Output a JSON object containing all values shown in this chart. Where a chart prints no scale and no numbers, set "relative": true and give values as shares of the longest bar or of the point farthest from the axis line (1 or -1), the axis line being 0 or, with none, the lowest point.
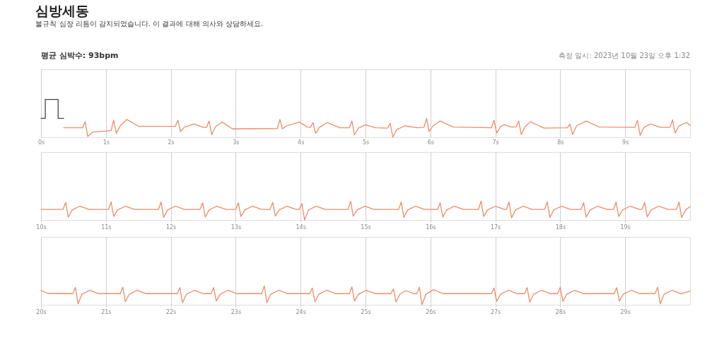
{
  "chart_data": [
    {
      "type": "line",
      "title": "심방세동",
      "subtitle": "불규칙 심장 리듬이 감지되었습니다. 이 결과에 대해 의사와 상담하세요.",
      "annotations": [
        "평균 심박수: 93bpm",
        "측정 일시: 2023년 10월 23일 오후 1:32"
      ],
      "relative": true,
      "grid": "x",
      "xlim": [
        0,
        10
      ],
      "xticks": [
        {
          "value": 0,
          "label": "0s"
        },
        {
          "value": 1,
          "label": "1s"
        },
        {
          "value": 2,
          "label": "2s"
        },
        {
          "value": 3,
          "label": "3s"
        },
        {
          "value": 4,
          "label": "4s"
        },
        {
          "value": 5,
          "label": "5s"
        },
        {
          "value": 6,
          "label": "6s"
        },
        {
          "value": 7,
          "label": "7s"
        },
        {
          "value": 8,
          "label": "8s"
        },
        {
          "value": 9,
          "label": "9s"
        }
      ],
      "series": [
        {
          "color": "#ee8d68",
          "x": [
            0.35,
            0.64,
            0.68,
            0.72,
            0.8,
            1.0,
            1.08,
            1.12,
            1.16,
            1.22,
            1.32,
            1.5,
            2.07,
            2.11,
            2.15,
            2.21,
            2.36,
            2.5,
            2.55,
            2.59,
            2.63,
            2.69,
            2.79,
            2.95,
            3.64,
            3.68,
            3.72,
            3.78,
            3.98,
            4.1,
            4.15,
            4.19,
            4.23,
            4.29,
            4.41,
            4.6,
            4.75,
            4.79,
            4.83,
            4.89,
            5.0,
            5.15,
            5.34,
            5.38,
            5.42,
            5.48,
            5.6,
            5.8,
            5.9,
            5.94,
            5.98,
            6.04,
            6.15,
            6.35,
            6.94,
            6.98,
            7.02,
            7.08,
            7.14,
            7.25,
            7.32,
            7.36,
            7.4,
            7.46,
            7.54,
            7.75,
            8.11,
            8.15,
            8.19,
            8.25,
            8.4,
            8.6,
            9.15,
            9.19,
            9.23,
            9.29,
            9.39,
            9.55,
            9.69,
            9.73,
            9.77,
            9.83,
            9.95,
            10.0
          ],
          "values": [
            0.25,
            0.25,
            0.41,
            0.02,
            0.14,
            0.16,
            0.18,
            0.45,
            0.1,
            0.3,
            0.47,
            0.29,
            0.29,
            0.45,
            0.15,
            0.27,
            0.35,
            0.26,
            0.26,
            0.43,
            0.07,
            0.28,
            0.4,
            0.22,
            0.23,
            0.47,
            0.22,
            0.3,
            0.4,
            0.27,
            0.26,
            0.39,
            0.1,
            0.26,
            0.39,
            0.25,
            0.25,
            0.43,
            0.06,
            0.24,
            0.33,
            0.25,
            0.24,
            0.37,
            0.0,
            0.2,
            0.3,
            0.25,
            0.26,
            0.5,
            0.15,
            0.3,
            0.43,
            0.27,
            0.25,
            0.45,
            0.11,
            0.28,
            0.33,
            0.27,
            0.27,
            0.43,
            0.07,
            0.28,
            0.41,
            0.24,
            0.25,
            0.35,
            0.07,
            0.3,
            0.43,
            0.27,
            0.26,
            0.45,
            0.05,
            0.26,
            0.35,
            0.26,
            0.26,
            0.46,
            0.11,
            0.3,
            0.39,
            0.31
          ]
        },
        {
          "color": "#444444",
          "x": [
            0,
            0.066,
            0.066,
            0.264,
            0.264,
            0.35
          ],
          "values": [
            0.5,
            0.5,
            1,
            1,
            0.5,
            0.5
          ]
        }
      ]
    },
    {
      "type": "line",
      "relative": true,
      "grid": "x",
      "xlim": [
        10,
        20
      ],
      "xticks": [
        {
          "value": 10,
          "label": "10s"
        },
        {
          "value": 11,
          "label": "11s"
        },
        {
          "value": 12,
          "label": "12s"
        },
        {
          "value": 13,
          "label": "13s"
        },
        {
          "value": 14,
          "label": "14s"
        },
        {
          "value": 15,
          "label": "15s"
        },
        {
          "value": 16,
          "label": "16s"
        },
        {
          "value": 17,
          "label": "17s"
        },
        {
          "value": 18,
          "label": "18s"
        },
        {
          "value": 19,
          "label": "19s"
        }
      ],
      "series": [
        {
          "color": "#ee8d68",
          "x": [
            10.0,
            10.34,
            10.38,
            10.42,
            10.48,
            10.6,
            10.74,
            11.04,
            11.08,
            11.12,
            11.18,
            11.3,
            11.44,
            11.81,
            11.85,
            11.89,
            11.95,
            12.07,
            12.21,
            12.45,
            12.49,
            12.53,
            12.59,
            12.71,
            12.85,
            13.0,
            13.04,
            13.08,
            13.14,
            13.26,
            13.4,
            13.53,
            13.57,
            13.61,
            13.67,
            13.79,
            13.93,
            13.98,
            14.02,
            14.06,
            14.12,
            14.24,
            14.38,
            14.73,
            14.77,
            14.81,
            14.87,
            14.99,
            15.13,
            15.51,
            15.55,
            15.59,
            15.65,
            15.77,
            15.91,
            16.11,
            16.15,
            16.19,
            16.25,
            16.37,
            16.51,
            16.74,
            16.78,
            16.82,
            16.88,
            17.0,
            17.14,
            17.17,
            17.21,
            17.25,
            17.31,
            17.43,
            17.57,
            17.76,
            17.8,
            17.84,
            17.9,
            18.02,
            18.16,
            18.32,
            18.36,
            18.4,
            18.46,
            18.58,
            18.72,
            18.82,
            18.86,
            18.9,
            18.96,
            19.08,
            19.22,
            19.26,
            19.3,
            19.34,
            19.4,
            19.52,
            19.66,
            19.79,
            19.83,
            19.87,
            19.93,
            20.0
          ],
          "values": [
            0.56,
            0.56,
            0.93,
            0.15,
            0.53,
            0.73,
            0.56,
            0.56,
            0.95,
            0.18,
            0.53,
            0.73,
            0.56,
            0.56,
            0.95,
            0.13,
            0.53,
            0.73,
            0.56,
            0.56,
            0.91,
            0.15,
            0.53,
            0.73,
            0.56,
            0.56,
            0.91,
            0.18,
            0.53,
            0.73,
            0.56,
            0.56,
            0.93,
            0.2,
            0.53,
            0.73,
            0.56,
            0.56,
            0.87,
            0.0,
            0.53,
            0.73,
            0.56,
            0.56,
            1.0,
            0.2,
            0.53,
            0.73,
            0.56,
            0.56,
            0.95,
            0.13,
            0.53,
            0.73,
            0.56,
            0.56,
            0.91,
            0.15,
            0.53,
            0.73,
            0.56,
            0.56,
            1.0,
            0.18,
            0.53,
            0.73,
            0.56,
            0.56,
            0.95,
            0.11,
            0.53,
            0.73,
            0.56,
            0.56,
            0.96,
            0.13,
            0.53,
            0.73,
            0.56,
            0.56,
            0.91,
            0.15,
            0.53,
            0.73,
            0.56,
            0.56,
            0.95,
            0.18,
            0.53,
            0.73,
            0.56,
            0.56,
            0.93,
            0.16,
            0.53,
            0.73,
            0.56,
            0.56,
            0.95,
            0.13,
            0.53,
            0.7
          ]
        }
      ]
    },
    {
      "type": "line",
      "relative": true,
      "grid": "x",
      "xlim": [
        20,
        30
      ],
      "xticks": [
        {
          "value": 20,
          "label": "20s"
        },
        {
          "value": 21,
          "label": "21s"
        },
        {
          "value": 22,
          "label": "22s"
        },
        {
          "value": 23,
          "label": "23s"
        },
        {
          "value": 24,
          "label": "24s"
        },
        {
          "value": 25,
          "label": "25s"
        },
        {
          "value": 26,
          "label": "26s"
        },
        {
          "value": 27,
          "label": "27s"
        },
        {
          "value": 28,
          "label": "28s"
        },
        {
          "value": 29,
          "label": "29s"
        }
      ],
      "series": [
        {
          "color": "#ee8d68",
          "x": [
            20.0,
            20.1,
            20.49,
            20.53,
            20.57,
            20.63,
            20.75,
            20.89,
            21.22,
            21.26,
            21.3,
            21.36,
            21.48,
            21.62,
            22.1,
            22.14,
            22.18,
            22.24,
            22.36,
            22.5,
            22.62,
            22.66,
            22.7,
            22.76,
            22.88,
            23.02,
            23.4,
            23.44,
            23.48,
            23.54,
            23.66,
            23.8,
            24.14,
            24.18,
            24.22,
            24.28,
            24.4,
            24.54,
            24.75,
            24.79,
            24.83,
            24.89,
            25.01,
            25.15,
            25.39,
            25.43,
            25.47,
            25.53,
            25.62,
            25.75,
            25.79,
            25.83,
            25.87,
            25.93,
            26.05,
            26.19,
            26.94,
            26.98,
            27.02,
            27.08,
            27.2,
            27.34,
            27.45,
            27.49,
            27.53,
            27.59,
            27.71,
            27.85,
            27.96,
            28.0,
            28.04,
            28.1,
            28.22,
            28.36,
            28.83,
            28.87,
            28.91,
            28.97,
            29.09,
            29.23,
            29.46,
            29.5,
            29.54,
            29.6,
            29.72,
            29.86,
            30.0
          ],
          "values": [
            0.77,
            0.6,
            0.59,
            0.93,
            0.05,
            0.56,
            0.77,
            0.59,
            0.59,
            0.93,
            0.16,
            0.56,
            0.77,
            0.59,
            0.59,
            0.91,
            0.11,
            0.56,
            0.77,
            0.59,
            0.59,
            0.91,
            0.2,
            0.56,
            0.77,
            0.59,
            0.59,
            1.0,
            0.12,
            0.56,
            0.77,
            0.59,
            0.59,
            0.89,
            0.16,
            0.56,
            0.77,
            0.59,
            0.59,
            0.95,
            0.2,
            0.56,
            0.77,
            0.59,
            0.59,
            0.84,
            0.14,
            0.56,
            0.75,
            0.59,
            0.59,
            0.93,
            0.0,
            0.56,
            0.8,
            0.59,
            0.59,
            0.89,
            0.18,
            0.56,
            0.77,
            0.59,
            0.59,
            0.91,
            0.14,
            0.56,
            0.77,
            0.59,
            0.59,
            0.93,
            0.18,
            0.56,
            0.77,
            0.59,
            0.59,
            0.91,
            0.2,
            0.56,
            0.77,
            0.59,
            0.59,
            0.93,
            0.05,
            0.56,
            0.77,
            0.59,
            0.73
          ]
        }
      ]
    }
  ]
}
